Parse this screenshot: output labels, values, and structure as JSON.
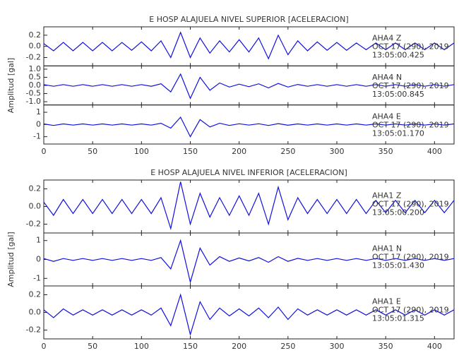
{
  "chart_data": [
    {
      "type": "line",
      "title": "E HOSP ALAJUELA NIVEL SUPERIOR [ACELERACION]",
      "ylabel": "Amplitud [gal]",
      "xlim": [
        0,
        420
      ],
      "xticks": [
        0,
        50,
        100,
        150,
        200,
        250,
        300,
        350,
        400
      ],
      "x": [
        0,
        10,
        20,
        30,
        40,
        50,
        60,
        70,
        80,
        90,
        100,
        110,
        120,
        130,
        140,
        150,
        160,
        170,
        180,
        190,
        200,
        210,
        220,
        230,
        240,
        250,
        260,
        270,
        280,
        290,
        300,
        310,
        320,
        330,
        340,
        350,
        360,
        370,
        380,
        390,
        400,
        410,
        420
      ],
      "panels": [
        {
          "ylim": [
            -0.35,
            0.35
          ],
          "yticks": [
            -0.2,
            {
              "value": 0,
              "label": "0.0"
            },
            0.2
          ],
          "series": [
            {
              "name": "AHA4  Z",
              "color": "#1010e0",
              "values": [
                0.05,
                -0.08,
                0.07,
                -0.08,
                0.07,
                -0.08,
                0.07,
                -0.08,
                0.07,
                -0.07,
                0.08,
                -0.08,
                0.1,
                -0.2,
                0.25,
                -0.2,
                0.15,
                -0.12,
                0.1,
                -0.1,
                0.12,
                -0.1,
                0.15,
                -0.22,
                0.2,
                -0.15,
                0.1,
                -0.08,
                0.08,
                -0.07,
                0.07,
                -0.07,
                0.06,
                -0.06,
                0.06,
                -0.06,
                0.06,
                -0.06,
                0.06,
                -0.06,
                0.06,
                -0.06,
                0.06
              ]
            }
          ],
          "annotations": [
            "OCT 17 (290), 2019",
            "13:05:00.425"
          ]
        },
        {
          "ylim": [
            -1.2,
            1.2
          ],
          "yticks": [
            {
              "value": -1,
              "label": "-1.0"
            },
            -0.5,
            {
              "value": 0,
              "label": "0.0"
            },
            0.5,
            {
              "value": 1,
              "label": "1.0"
            }
          ],
          "series": [
            {
              "name": "AHA4  N",
              "color": "#1010e0",
              "values": [
                0.05,
                -0.05,
                0.05,
                -0.05,
                0.05,
                -0.05,
                0.05,
                -0.05,
                0.05,
                -0.05,
                0.05,
                -0.05,
                0.1,
                -0.4,
                0.7,
                -0.8,
                0.5,
                -0.3,
                0.15,
                -0.1,
                0.08,
                -0.08,
                0.1,
                -0.15,
                0.12,
                -0.1,
                0.06,
                -0.05,
                0.05,
                -0.05,
                0.05,
                -0.05,
                0.05,
                -0.05,
                0.05,
                -0.05,
                0.05,
                -0.05,
                0.05,
                -0.05,
                0.05,
                -0.05,
                0.05
              ]
            }
          ],
          "annotations": [
            "OCT 17 (290), 2019",
            "13:05:00.845"
          ]
        },
        {
          "ylim": [
            -1.6,
            1.6
          ],
          "yticks": [
            -1,
            0,
            1
          ],
          "series": [
            {
              "name": "AHA4  E",
              "color": "#1010e0",
              "values": [
                0.05,
                -0.08,
                0.05,
                -0.05,
                0.05,
                -0.05,
                0.05,
                -0.05,
                0.05,
                -0.05,
                0.05,
                -0.05,
                0.1,
                -0.3,
                0.6,
                -1.0,
                0.4,
                -0.2,
                0.1,
                -0.08,
                0.06,
                -0.05,
                0.06,
                -0.08,
                0.07,
                -0.06,
                0.05,
                -0.05,
                0.05,
                -0.05,
                0.05,
                -0.05,
                0.05,
                -0.05,
                0.05,
                -0.05,
                0.05,
                -0.05,
                0.05,
                -0.05,
                0.05,
                -0.05,
                0.05
              ]
            }
          ],
          "annotations": [
            "OCT 17 (290), 2019",
            "13:05:01.170"
          ]
        }
      ]
    },
    {
      "type": "line",
      "title": "E HOSP ALAJUELA NIVEL INFERIOR [ACELERACION]",
      "ylabel": "Amplitud [gal]",
      "xlim": [
        0,
        420
      ],
      "xticks": [
        0,
        50,
        100,
        150,
        200,
        250,
        300,
        350,
        400
      ],
      "x": [
        0,
        10,
        20,
        30,
        40,
        50,
        60,
        70,
        80,
        90,
        100,
        110,
        120,
        130,
        140,
        150,
        160,
        170,
        180,
        190,
        200,
        210,
        220,
        230,
        240,
        250,
        260,
        270,
        280,
        290,
        300,
        310,
        320,
        330,
        340,
        350,
        360,
        370,
        380,
        390,
        400,
        410,
        420
      ],
      "panels": [
        {
          "ylim": [
            -0.3,
            0.3
          ],
          "yticks": [
            -0.2,
            {
              "value": 0,
              "label": "0.0"
            },
            0.2
          ],
          "series": [
            {
              "name": "AHA1  Z",
              "color": "#1010e0",
              "values": [
                0.05,
                -0.1,
                0.08,
                -0.08,
                0.08,
                -0.08,
                0.08,
                -0.08,
                0.08,
                -0.08,
                0.08,
                -0.08,
                0.1,
                -0.25,
                0.28,
                -0.2,
                0.15,
                -0.12,
                0.1,
                -0.1,
                0.12,
                -0.1,
                0.15,
                -0.2,
                0.22,
                -0.15,
                0.1,
                -0.08,
                0.08,
                -0.08,
                0.08,
                -0.08,
                0.08,
                -0.08,
                0.07,
                -0.07,
                0.07,
                -0.07,
                0.07,
                -0.07,
                0.07,
                -0.07,
                0.07
              ]
            }
          ],
          "annotations": [
            "OCT 17 (290), 2019",
            "13:05:00.200"
          ]
        },
        {
          "ylim": [
            -1.4,
            1.4
          ],
          "yticks": [
            -1,
            0,
            1
          ],
          "series": [
            {
              "name": "AHA1  N",
              "color": "#1010e0",
              "values": [
                0.05,
                -0.1,
                0.05,
                -0.05,
                0.05,
                -0.05,
                0.05,
                -0.05,
                0.05,
                -0.05,
                0.05,
                -0.05,
                0.1,
                -0.5,
                1.0,
                -1.2,
                0.6,
                -0.3,
                0.15,
                -0.1,
                0.08,
                -0.08,
                0.1,
                -0.15,
                0.15,
                -0.1,
                0.06,
                -0.05,
                0.05,
                -0.05,
                0.05,
                -0.05,
                0.05,
                -0.05,
                0.05,
                -0.05,
                0.05,
                -0.05,
                0.05,
                -0.05,
                0.05,
                -0.05,
                0.05
              ]
            }
          ],
          "annotations": [
            "OCT 17 (290), 2019",
            "13:05:01.430"
          ]
        },
        {
          "ylim": [
            -0.3,
            0.3
          ],
          "yticks": [
            -0.2,
            {
              "value": 0,
              "label": "0.0"
            },
            0.2
          ],
          "series": [
            {
              "name": "AHA1  E",
              "color": "#1010e0",
              "values": [
                0.03,
                -0.06,
                0.04,
                -0.03,
                0.03,
                -0.03,
                0.03,
                -0.03,
                0.03,
                -0.03,
                0.03,
                -0.03,
                0.05,
                -0.15,
                0.2,
                -0.25,
                0.12,
                -0.08,
                0.05,
                -0.04,
                0.04,
                -0.04,
                0.05,
                -0.06,
                0.06,
                -0.08,
                0.04,
                -0.03,
                0.03,
                -0.03,
                0.03,
                -0.03,
                0.03,
                -0.03,
                0.03,
                -0.03,
                0.03,
                -0.03,
                0.03,
                -0.03,
                0.03,
                -0.03,
                0.03
              ]
            }
          ],
          "annotations": [
            "OCT 17 (290), 2019",
            "13:05:01.315"
          ]
        }
      ]
    }
  ]
}
